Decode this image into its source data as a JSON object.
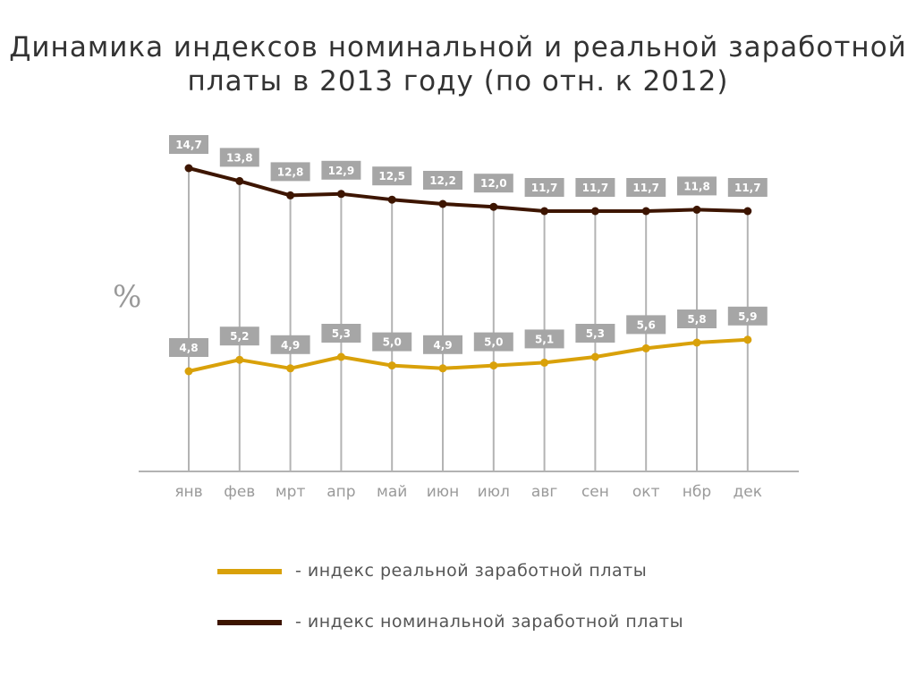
{
  "chart_data": {
    "type": "line",
    "title": "Динамика индексов номинальной и реальной заработной платы в 2013 году (по отн. к 2012)",
    "ylabel": "%",
    "xlabel": "",
    "categories": [
      "янв",
      "фев",
      "мрт",
      "апр",
      "май",
      "июн",
      "июл",
      "авг",
      "сен",
      "окт",
      "нбр",
      "дек"
    ],
    "series": [
      {
        "name": "- индекс номинальной заработной платы",
        "color": "#3d1500",
        "values": [
          14.7,
          13.8,
          12.8,
          12.9,
          12.5,
          12.2,
          12.0,
          11.7,
          11.7,
          11.7,
          11.8,
          11.7
        ],
        "labels": [
          "14,7",
          "13,8",
          "12,8",
          "12,9",
          "12,5",
          "12,2",
          "12,0",
          "11,7",
          "11,7",
          "11,7",
          "11,8",
          "11,7"
        ]
      },
      {
        "name": "- индекс реальной заработной платы",
        "color": "#d9a10a",
        "values": [
          4.8,
          5.2,
          4.9,
          5.3,
          5.0,
          4.9,
          5.0,
          5.1,
          5.3,
          5.6,
          5.8,
          5.9
        ],
        "labels": [
          "4,8",
          "5,2",
          "4,9",
          "5,3",
          "5,0",
          "4,9",
          "5,0",
          "5,1",
          "5,3",
          "5,6",
          "5,8",
          "5,9"
        ]
      }
    ],
    "grid": "vertical drop lines",
    "legend": "bottom"
  }
}
